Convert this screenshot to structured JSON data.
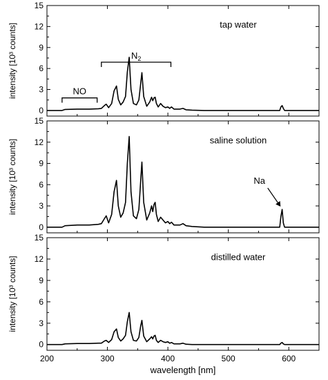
{
  "chart_data": [
    {
      "type": "line",
      "title": "",
      "annotation": "tap water",
      "ylabel": "intensity [10³ counts]",
      "xlabel": "",
      "xlim": [
        200,
        650
      ],
      "ylim": [
        -0.8,
        15
      ],
      "y_ticks": [
        0,
        3,
        6,
        9,
        12,
        15
      ],
      "x_ticks": [
        200,
        300,
        400,
        500,
        600
      ],
      "grid": false,
      "brackets": [
        {
          "label": "NO",
          "x_start": 225,
          "x_end": 283,
          "y": 1.8
        },
        {
          "label": "N",
          "label_sub": "2",
          "x_start": 290,
          "x_end": 405,
          "y": 6.9
        }
      ],
      "series": [
        {
          "x": [
            200,
            225,
            230,
            250,
            270,
            285,
            290,
            295,
            298,
            302,
            307,
            311,
            315,
            318,
            322,
            326,
            330,
            333,
            336,
            339,
            343,
            348,
            352,
            355,
            357,
            360,
            365,
            370,
            373,
            375,
            377,
            379,
            381,
            384,
            388,
            392,
            396,
            400,
            403,
            406,
            410,
            415,
            420,
            425,
            430,
            440,
            460,
            500,
            550,
            585,
            587,
            589,
            591,
            593,
            620,
            650
          ],
          "y": [
            0,
            0,
            0.15,
            0.2,
            0.2,
            0.25,
            0.3,
            0.7,
            0.9,
            0.4,
            1.0,
            2.8,
            3.5,
            1.6,
            0.8,
            1.2,
            2.0,
            5.5,
            7.6,
            3.0,
            1.0,
            0.8,
            1.5,
            3.8,
            5.4,
            2.0,
            0.6,
            1.2,
            1.9,
            1.4,
            1.8,
            1.9,
            1.0,
            0.5,
            1.0,
            0.6,
            0.4,
            0.5,
            0.3,
            0.5,
            0.2,
            0.2,
            0.2,
            0.3,
            0.1,
            0.05,
            0,
            0,
            0,
            0,
            0.5,
            0.7,
            0.3,
            0,
            0,
            0
          ]
        }
      ]
    },
    {
      "type": "line",
      "title": "",
      "annotation": "saline solution",
      "ylabel": "intensity [10³ counts]",
      "xlabel": "",
      "xlim": [
        200,
        650
      ],
      "ylim": [
        -0.8,
        15
      ],
      "y_ticks": [
        0,
        3,
        6,
        9,
        12,
        15
      ],
      "x_ticks": [
        200,
        300,
        400,
        500,
        600
      ],
      "grid": false,
      "arrow_label": {
        "label": "Na",
        "x": 588,
        "y": 2.6
      },
      "series": [
        {
          "x": [
            200,
            225,
            230,
            250,
            270,
            285,
            290,
            295,
            298,
            302,
            307,
            311,
            315,
            318,
            322,
            326,
            330,
            333,
            336,
            339,
            343,
            348,
            352,
            355,
            357,
            360,
            365,
            370,
            373,
            375,
            377,
            379,
            381,
            384,
            388,
            392,
            396,
            400,
            403,
            406,
            410,
            415,
            420,
            425,
            430,
            440,
            460,
            500,
            550,
            585,
            587,
            589,
            591,
            593,
            620,
            650
          ],
          "y": [
            0,
            0,
            0.2,
            0.3,
            0.3,
            0.4,
            0.5,
            1.2,
            1.6,
            0.6,
            1.8,
            5.0,
            6.6,
            3.0,
            1.4,
            2.0,
            3.5,
            9.0,
            12.8,
            5.0,
            1.6,
            1.2,
            2.5,
            6.5,
            9.2,
            3.5,
            1.0,
            2.0,
            3.0,
            2.2,
            3.2,
            3.5,
            1.8,
            0.8,
            1.4,
            1.0,
            0.6,
            0.8,
            0.5,
            0.7,
            0.3,
            0.3,
            0.3,
            0.5,
            0.2,
            0.1,
            0,
            0,
            0,
            0,
            1.5,
            2.5,
            0.6,
            0,
            0,
            0
          ]
        }
      ]
    },
    {
      "type": "line",
      "title": "",
      "annotation": "distilled water",
      "ylabel": "intensity [10³ counts]",
      "xlabel": "wavelength [nm]",
      "xlim": [
        200,
        650
      ],
      "ylim": [
        -0.8,
        15
      ],
      "y_ticks": [
        0,
        3,
        6,
        9,
        12,
        15
      ],
      "x_ticks": [
        200,
        300,
        400,
        500,
        600
      ],
      "grid": false,
      "series": [
        {
          "x": [
            200,
            225,
            230,
            250,
            270,
            285,
            290,
            295,
            298,
            302,
            307,
            311,
            315,
            318,
            322,
            326,
            330,
            333,
            336,
            339,
            343,
            348,
            352,
            355,
            357,
            360,
            365,
            370,
            373,
            375,
            377,
            379,
            381,
            384,
            388,
            392,
            396,
            400,
            403,
            406,
            410,
            415,
            420,
            425,
            430,
            440,
            460,
            500,
            550,
            585,
            587,
            589,
            591,
            593,
            620,
            650
          ],
          "y": [
            0,
            0,
            0.1,
            0.15,
            0.15,
            0.2,
            0.2,
            0.5,
            0.6,
            0.3,
            0.7,
            1.8,
            2.2,
            1.0,
            0.5,
            0.8,
            1.3,
            3.2,
            4.5,
            1.8,
            0.6,
            0.5,
            1.0,
            2.6,
            3.4,
            1.2,
            0.4,
            0.8,
            1.1,
            0.8,
            1.2,
            1.3,
            0.6,
            0.3,
            0.6,
            0.4,
            0.3,
            0.4,
            0.2,
            0.3,
            0.1,
            0.1,
            0.1,
            0.2,
            0.05,
            0,
            0,
            0,
            0,
            0,
            0.2,
            0.3,
            0.1,
            0,
            0,
            0
          ]
        }
      ]
    }
  ]
}
